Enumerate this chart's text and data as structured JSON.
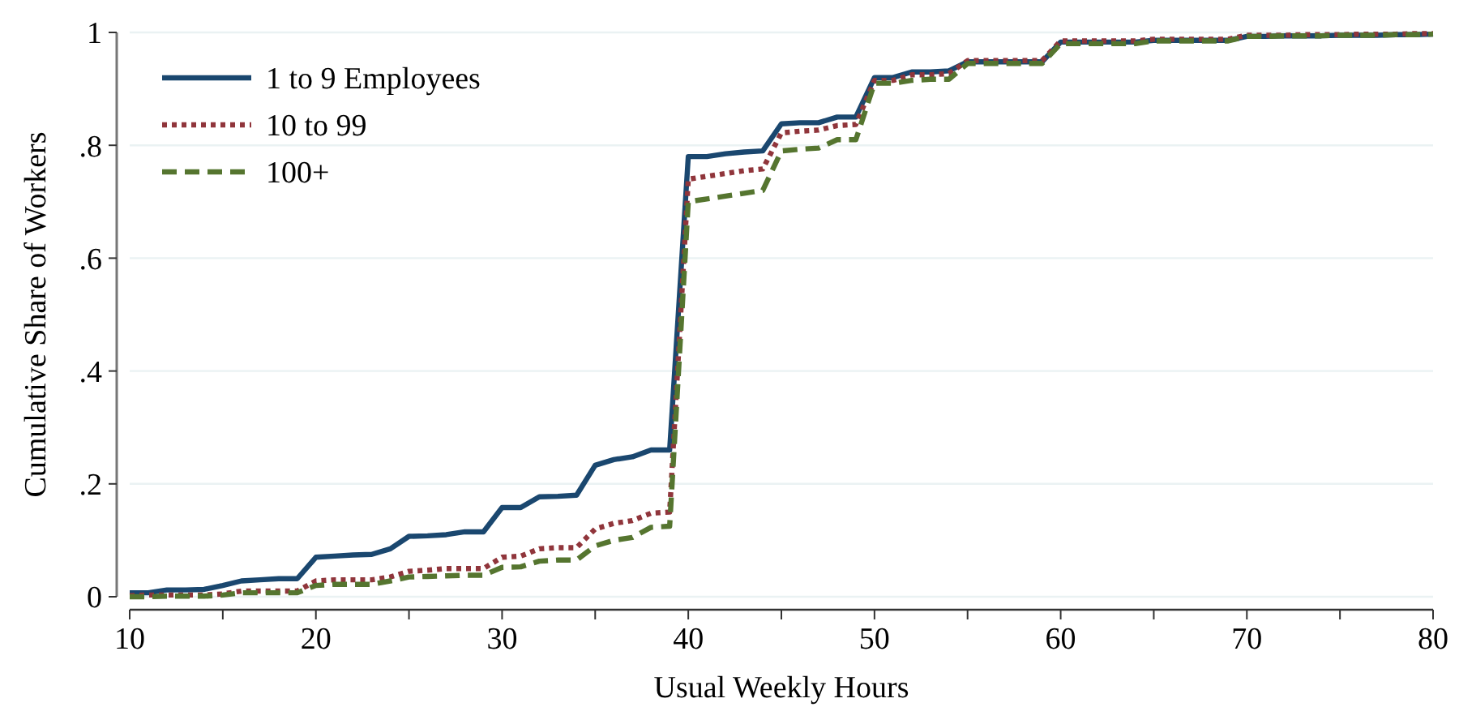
{
  "chart_data": {
    "type": "line",
    "xlabel": "Usual Weekly Hours",
    "ylabel": "Cumulative Share of Workers",
    "x": [
      10,
      11,
      12,
      13,
      14,
      15,
      16,
      17,
      18,
      19,
      20,
      21,
      22,
      23,
      24,
      25,
      26,
      27,
      28,
      29,
      30,
      31,
      32,
      33,
      34,
      35,
      36,
      37,
      38,
      39,
      40,
      41,
      42,
      43,
      44,
      45,
      46,
      47,
      48,
      49,
      50,
      51,
      52,
      53,
      54,
      55,
      56,
      57,
      58,
      59,
      60,
      61,
      62,
      63,
      64,
      65,
      66,
      67,
      68,
      69,
      70,
      71,
      72,
      73,
      74,
      75,
      76,
      77,
      78,
      79,
      80
    ],
    "series": [
      {
        "name": "1 to 9 Employees",
        "color": "#1a476f",
        "line_style": "solid",
        "values": [
          0.007,
          0.007,
          0.012,
          0.012,
          0.013,
          0.02,
          0.028,
          0.03,
          0.032,
          0.032,
          0.07,
          0.072,
          0.074,
          0.075,
          0.085,
          0.107,
          0.108,
          0.11,
          0.115,
          0.115,
          0.158,
          0.158,
          0.177,
          0.178,
          0.18,
          0.233,
          0.243,
          0.248,
          0.26,
          0.26,
          0.78,
          0.78,
          0.785,
          0.788,
          0.79,
          0.838,
          0.84,
          0.84,
          0.85,
          0.85,
          0.92,
          0.92,
          0.93,
          0.93,
          0.932,
          0.948,
          0.948,
          0.948,
          0.948,
          0.948,
          0.983,
          0.983,
          0.983,
          0.983,
          0.983,
          0.986,
          0.986,
          0.986,
          0.986,
          0.986,
          0.993,
          0.993,
          0.994,
          0.994,
          0.994,
          0.995,
          0.995,
          0.995,
          0.996,
          0.996,
          0.997
        ]
      },
      {
        "name": "10 to 99",
        "color": "#90353b",
        "line_style": "dotted",
        "values": [
          0.002,
          0.003,
          0.003,
          0.003,
          0.003,
          0.005,
          0.01,
          0.01,
          0.01,
          0.01,
          0.028,
          0.03,
          0.03,
          0.03,
          0.035,
          0.045,
          0.047,
          0.05,
          0.05,
          0.05,
          0.07,
          0.072,
          0.085,
          0.087,
          0.087,
          0.12,
          0.13,
          0.135,
          0.148,
          0.15,
          0.74,
          0.745,
          0.75,
          0.755,
          0.758,
          0.822,
          0.825,
          0.827,
          0.835,
          0.837,
          0.915,
          0.915,
          0.925,
          0.925,
          0.927,
          0.95,
          0.95,
          0.95,
          0.95,
          0.95,
          0.985,
          0.985,
          0.985,
          0.985,
          0.985,
          0.988,
          0.988,
          0.988,
          0.988,
          0.988,
          0.995,
          0.995,
          0.995,
          0.996,
          0.996,
          0.996,
          0.997,
          0.997,
          0.997,
          0.998,
          0.998
        ]
      },
      {
        "name": "100+",
        "color": "#55752f",
        "line_style": "dashed",
        "values": [
          0,
          0,
          0.001,
          0.001,
          0.001,
          0.003,
          0.007,
          0.007,
          0.007,
          0.007,
          0.02,
          0.022,
          0.022,
          0.022,
          0.028,
          0.035,
          0.036,
          0.037,
          0.038,
          0.038,
          0.052,
          0.053,
          0.063,
          0.065,
          0.065,
          0.09,
          0.1,
          0.105,
          0.123,
          0.125,
          0.7,
          0.705,
          0.71,
          0.715,
          0.72,
          0.79,
          0.793,
          0.795,
          0.81,
          0.81,
          0.91,
          0.91,
          0.915,
          0.917,
          0.917,
          0.945,
          0.945,
          0.945,
          0.945,
          0.945,
          0.98,
          0.98,
          0.98,
          0.98,
          0.98,
          0.985,
          0.985,
          0.985,
          0.985,
          0.985,
          0.993,
          0.993,
          0.994,
          0.994,
          0.994,
          0.995,
          0.995,
          0.995,
          0.996,
          0.996,
          0.997
        ]
      }
    ],
    "xlim": [
      10,
      80
    ],
    "ylim": [
      0,
      1
    ],
    "xticks": [
      10,
      {
        "value": 15,
        "label": null
      },
      20,
      {
        "value": 25,
        "label": null
      },
      30,
      {
        "value": 35,
        "label": null
      },
      40,
      {
        "value": 45,
        "label": null
      },
      50,
      {
        "value": 55,
        "label": null
      },
      60,
      {
        "value": 65,
        "label": null
      },
      70,
      {
        "value": 75,
        "label": null
      },
      80
    ],
    "yticks": [
      0,
      {
        "value": 0.2,
        "label": ".2"
      },
      {
        "value": 0.4,
        "label": ".4"
      },
      {
        "value": 0.6,
        "label": ".6"
      },
      {
        "value": 0.8,
        "label": ".8"
      },
      1
    ],
    "grid": "y",
    "legend": "top left",
    "marker": "none"
  }
}
